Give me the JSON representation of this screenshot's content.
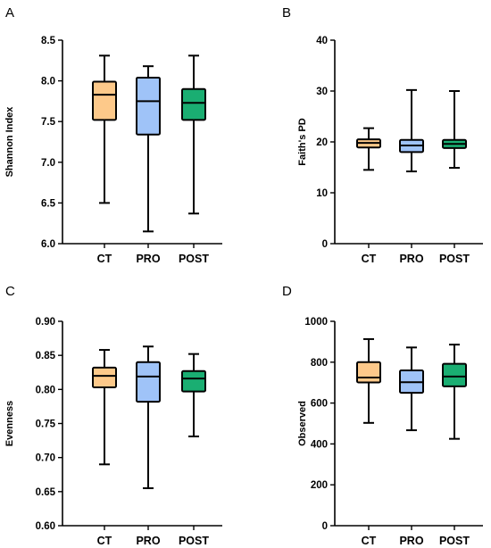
{
  "colors": {
    "CT": "#FDC98A",
    "PRO": "#9FC3F8",
    "POST": "#1AAE72",
    "line": "#000000"
  },
  "chart_data": [
    {
      "panel": "A",
      "type": "box",
      "ylabel": "Shannon Index",
      "ylim": [
        6.0,
        8.5
      ],
      "yticks": [
        "6.0",
        "6.5",
        "7.0",
        "7.5",
        "8.0",
        "8.5"
      ],
      "categories": [
        "CT",
        "PRO",
        "POST"
      ],
      "boxes": [
        {
          "category": "CT",
          "min": 6.5,
          "q1": 7.52,
          "median": 7.83,
          "q3": 7.99,
          "max": 8.31
        },
        {
          "category": "PRO",
          "min": 6.15,
          "q1": 7.34,
          "median": 7.75,
          "q3": 8.04,
          "max": 8.18
        },
        {
          "category": "POST",
          "min": 6.37,
          "q1": 7.52,
          "median": 7.73,
          "q3": 7.9,
          "max": 8.31
        }
      ]
    },
    {
      "panel": "B",
      "type": "box",
      "ylabel": "Faith's PD",
      "ylim": [
        0,
        40
      ],
      "yticks": [
        "0",
        "10",
        "20",
        "30",
        "40"
      ],
      "categories": [
        "CT",
        "PRO",
        "POST"
      ],
      "boxes": [
        {
          "category": "CT",
          "min": 14.5,
          "q1": 18.9,
          "median": 19.8,
          "q3": 20.5,
          "max": 22.7
        },
        {
          "category": "PRO",
          "min": 14.2,
          "q1": 18.0,
          "median": 19.3,
          "q3": 20.4,
          "max": 30.2
        },
        {
          "category": "POST",
          "min": 14.9,
          "q1": 18.8,
          "median": 19.6,
          "q3": 20.4,
          "max": 30.0
        }
      ]
    },
    {
      "panel": "C",
      "type": "box",
      "ylabel": "Evenness",
      "ylim": [
        0.6,
        0.9
      ],
      "yticks": [
        "0.60",
        "0.65",
        "0.70",
        "0.75",
        "0.80",
        "0.85",
        "0.90"
      ],
      "categories": [
        "CT",
        "PRO",
        "POST"
      ],
      "boxes": [
        {
          "category": "CT",
          "min": 0.69,
          "q1": 0.803,
          "median": 0.82,
          "q3": 0.832,
          "max": 0.858
        },
        {
          "category": "PRO",
          "min": 0.655,
          "q1": 0.782,
          "median": 0.819,
          "q3": 0.84,
          "max": 0.863
        },
        {
          "category": "POST",
          "min": 0.731,
          "q1": 0.797,
          "median": 0.816,
          "q3": 0.827,
          "max": 0.852
        }
      ]
    },
    {
      "panel": "D",
      "type": "box",
      "ylabel": "Observed",
      "ylim": [
        0,
        1000
      ],
      "yticks": [
        "0",
        "200",
        "400",
        "600",
        "800",
        "1000"
      ],
      "categories": [
        "CT",
        "PRO",
        "POST"
      ],
      "boxes": [
        {
          "category": "CT",
          "min": 503,
          "q1": 701,
          "median": 725,
          "q3": 800,
          "max": 913
        },
        {
          "category": "PRO",
          "min": 467,
          "q1": 650,
          "median": 702,
          "q3": 760,
          "max": 872
        },
        {
          "category": "POST",
          "min": 425,
          "q1": 682,
          "median": 730,
          "q3": 792,
          "max": 886
        }
      ]
    }
  ]
}
